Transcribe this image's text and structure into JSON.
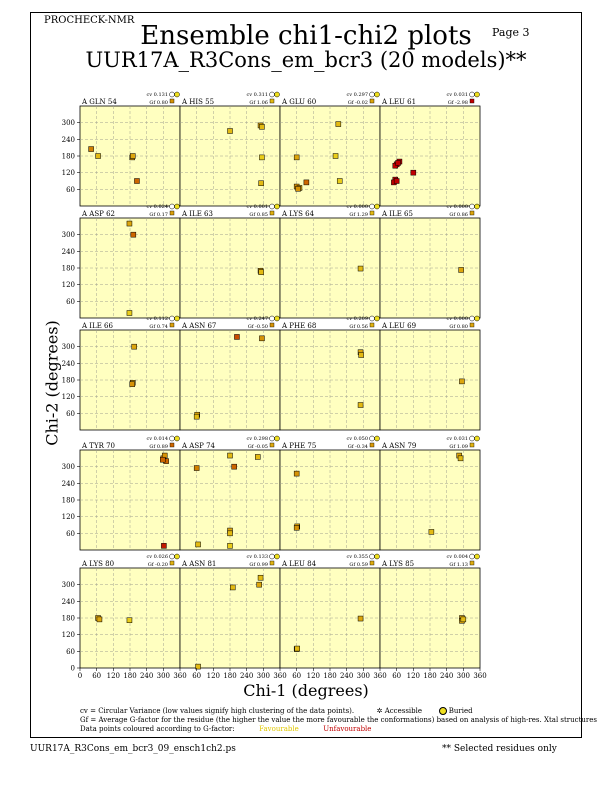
{
  "header": {
    "program": "PROCHECK-NMR",
    "page": "Page  3",
    "title": "Ensemble chi1-chi2 plots",
    "subtitle": "UUR17A_R3Cons_em_bcr3 (20 models)**"
  },
  "legend": {
    "cv_text": "cv = Circular Variance (low values signify high clustering of the data points).",
    "accessible_label": "Accessible",
    "buried_label": "Buried",
    "gf_text": "Gf = Average G-factor for the residue (the higher the value the more favourable the conformations) based on analysis of high-res. Xtal structures",
    "colour_text": "Data points coloured according to G-factor:",
    "favourable_label": "Favourable",
    "unfavourable_label": "Unfavourable"
  },
  "footer": {
    "filename": "UUR17A_R3Cons_em_bcr3_09_ensch1ch2.ps",
    "note": "** Selected residues only"
  },
  "colors": {
    "panel_bg": "#ffffc0",
    "grid": "#a0a090",
    "favourable": "#f0e020",
    "unfavourable": "#c00000",
    "mid": "#d08000"
  },
  "chart_data": {
    "type": "scatter",
    "xlabel": "Chi-1 (degrees)",
    "ylabel": "Chi-2 (degrees)",
    "xlim": [
      0,
      360
    ],
    "ylim": [
      0,
      360
    ],
    "x_ticks": [
      "0",
      "60",
      "120",
      "180",
      "240",
      "300",
      "360"
    ],
    "x_ticks_2": [
      "60",
      "120",
      "180",
      "240",
      "300",
      "360"
    ],
    "y_ticks": [
      "60",
      "120",
      "180",
      "240",
      "300"
    ],
    "y_ticks_last": [
      "0",
      "60",
      "120",
      "180",
      "240",
      "300"
    ],
    "panels": [
      {
        "residue": "A GLN 54",
        "cv": "cv 0.131",
        "gf": "Gf 0.80",
        "points": [
          [
            40,
            205,
            0.5
          ],
          [
            65,
            180,
            0.2
          ],
          [
            188,
            175,
            0.4
          ],
          [
            190,
            180,
            0.3
          ],
          [
            205,
            90,
            0.6
          ]
        ]
      },
      {
        "residue": "A HIS 55",
        "cv": "cv 0.311",
        "gf": "Gf 1.06",
        "points": [
          [
            180,
            270,
            0.2
          ],
          [
            290,
            290,
            0.3
          ],
          [
            295,
            285,
            0.2
          ],
          [
            295,
            175,
            0.1
          ],
          [
            292,
            82,
            0.2
          ]
        ]
      },
      {
        "residue": "A GLU 60",
        "cv": "cv 0.297",
        "gf": "Gf -0.02",
        "points": [
          [
            60,
            175,
            0.3
          ],
          [
            60,
            70,
            0.4
          ],
          [
            70,
            65,
            0.3
          ],
          [
            65,
            62,
            0.4
          ],
          [
            95,
            85,
            0.6
          ],
          [
            215,
            90,
            0.1
          ],
          [
            200,
            180,
            0.1
          ],
          [
            210,
            295,
            0.2
          ]
        ]
      },
      {
        "residue": "A LEU 61",
        "cv": "cv 0.031",
        "gf": "Gf -2.98",
        "points": [
          [
            60,
            150,
            1
          ],
          [
            55,
            145,
            1
          ],
          [
            70,
            160,
            1
          ],
          [
            65,
            155,
            1
          ],
          [
            55,
            95,
            1
          ],
          [
            50,
            85,
            1
          ],
          [
            60,
            90,
            1
          ],
          [
            120,
            120,
            1
          ]
        ]
      },
      {
        "residue": "A ASP 62",
        "cv": "cv 0.024",
        "gf": "Gf 0.17",
        "points": [
          [
            178,
            340,
            0.3
          ],
          [
            192,
            300,
            0.6
          ],
          [
            178,
            18,
            0.1
          ]
        ]
      },
      {
        "residue": "A ILE 63",
        "cv": "cv 0.001",
        "gf": "Gf 0.85",
        "points": [
          [
            290,
            170,
            0.3
          ],
          [
            292,
            165,
            0.2
          ]
        ]
      },
      {
        "residue": "A LYS 64",
        "cv": "cv 0.000",
        "gf": "Gf 1.29",
        "points": [
          [
            290,
            178,
            0.2
          ]
        ]
      },
      {
        "residue": "A ILE 65",
        "cv": "cv 0.000",
        "gf": "Gf 0.86",
        "points": [
          [
            292,
            173,
            0.3
          ]
        ]
      },
      {
        "residue": "A ILE 66",
        "cv": "cv 0.112",
        "gf": "Gf 0.74",
        "points": [
          [
            195,
            300,
            0.3
          ],
          [
            190,
            170,
            0.3
          ],
          [
            188,
            165,
            0.4
          ]
        ]
      },
      {
        "residue": "A ASN 67",
        "cv": "cv 0.247",
        "gf": "Gf -0.50",
        "points": [
          [
            205,
            335,
            0.7
          ],
          [
            295,
            330,
            0.4
          ],
          [
            62,
            55,
            0.3
          ],
          [
            60,
            48,
            0.2
          ]
        ]
      },
      {
        "residue": "A PHE 68",
        "cv": "cv 0.209",
        "gf": "Gf 0.56",
        "points": [
          [
            290,
            280,
            0.3
          ],
          [
            292,
            270,
            0.2
          ],
          [
            290,
            90,
            0.2
          ]
        ]
      },
      {
        "residue": "A LEU 69",
        "cv": "cv 0.000",
        "gf": "Gf 0.80",
        "points": [
          [
            295,
            175,
            0.3
          ]
        ]
      },
      {
        "residue": "A TYR 70",
        "cv": "cv 0.014",
        "gf": "Gf 0.89",
        "points": [
          [
            300,
            330,
            0.5
          ],
          [
            310,
            320,
            0.6
          ],
          [
            305,
            340,
            0.4
          ],
          [
            298,
            325,
            0.6
          ],
          [
            302,
            15,
            0.9
          ]
        ]
      },
      {
        "residue": "A ASP 74",
        "cv": "cv 0.298",
        "gf": "Gf -0.05",
        "points": [
          [
            60,
            295,
            0.5
          ],
          [
            180,
            340,
            0.2
          ],
          [
            195,
            300,
            0.6
          ],
          [
            280,
            335,
            0.2
          ],
          [
            180,
            70,
            0.3
          ],
          [
            180,
            60,
            0.2
          ],
          [
            180,
            15,
            0.1
          ],
          [
            65,
            20,
            0.2
          ]
        ]
      },
      {
        "residue": "A PHE 75",
        "cv": "cv 0.050",
        "gf": "Gf -0.34",
        "points": [
          [
            60,
            275,
            0.4
          ],
          [
            62,
            85,
            0.3
          ],
          [
            60,
            80,
            0.4
          ]
        ]
      },
      {
        "residue": "A ASN 79",
        "cv": "cv 0.031",
        "gf": "Gf 1.09",
        "points": [
          [
            285,
            340,
            0.3
          ],
          [
            290,
            330,
            0.2
          ],
          [
            185,
            65,
            0.2
          ]
        ]
      },
      {
        "residue": "A LYS 80",
        "cv": "cv 0.026",
        "gf": "Gf -0.20",
        "points": [
          [
            65,
            180,
            0.3
          ],
          [
            70,
            175,
            0.3
          ],
          [
            178,
            172,
            0.1
          ]
        ]
      },
      {
        "residue": "A ASN 81",
        "cv": "cv 0.133",
        "gf": "Gf 0.99",
        "points": [
          [
            290,
            325,
            0.2
          ],
          [
            285,
            300,
            0.3
          ],
          [
            190,
            290,
            0.2
          ],
          [
            65,
            5,
            0.2
          ]
        ]
      },
      {
        "residue": "A LEU 84",
        "cv": "cv 0.355",
        "gf": "Gf 0.59",
        "points": [
          [
            290,
            178,
            0.3
          ],
          [
            60,
            68,
            0.3
          ],
          [
            62,
            70,
            0.2
          ]
        ]
      },
      {
        "residue": "A LYS 85",
        "cv": "cv 0.004",
        "gf": "Gf 1.13",
        "points": [
          [
            295,
            180,
            0.3
          ],
          [
            295,
            170,
            0.3
          ],
          [
            300,
            175,
            0.2
          ]
        ]
      }
    ]
  }
}
